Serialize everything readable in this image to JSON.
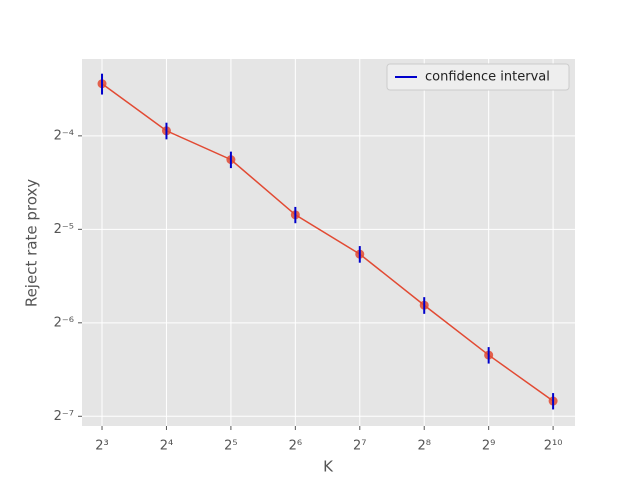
{
  "chart_data": {
    "type": "errorbar-line",
    "xlabel": "K",
    "ylabel": "Reject rate proxy",
    "x": [
      8,
      16,
      32,
      64,
      128,
      256,
      512,
      1024
    ],
    "series": [
      {
        "color": "#e24a33",
        "error_color": "#0000cc",
        "error_label": "confidence interval",
        "values": [
          0.092,
          0.0649,
          0.0524,
          0.0348,
          0.026,
          0.0178,
          0.0123,
          0.00875
        ],
        "errors": [
          0.0071,
          0.004,
          0.0032,
          0.0021,
          0.0016,
          0.0011,
          0.00075,
          0.00053
        ]
      }
    ],
    "xscale": "log2",
    "yscale": "log2",
    "xlim": [
      6.45,
      1296
    ],
    "ylim": [
      0.00727,
      0.1105
    ],
    "xticks": [
      {
        "value": 8,
        "label": "2³"
      },
      {
        "value": 16,
        "label": "2⁴"
      },
      {
        "value": 32,
        "label": "2⁵"
      },
      {
        "value": 64,
        "label": "2⁶"
      },
      {
        "value": 128,
        "label": "2⁷"
      },
      {
        "value": 256,
        "label": "2⁸"
      },
      {
        "value": 512,
        "label": "2⁹"
      },
      {
        "value": 1024,
        "label": "2¹⁰"
      }
    ],
    "yticks": [
      {
        "value": 0.0625,
        "label": "2⁻⁴"
      },
      {
        "value": 0.03125,
        "label": "2⁻⁵"
      },
      {
        "value": 0.015625,
        "label": "2⁻⁶"
      },
      {
        "value": 0.0078125,
        "label": "2⁻⁷"
      }
    ],
    "grid": true,
    "legend": "upper right"
  }
}
